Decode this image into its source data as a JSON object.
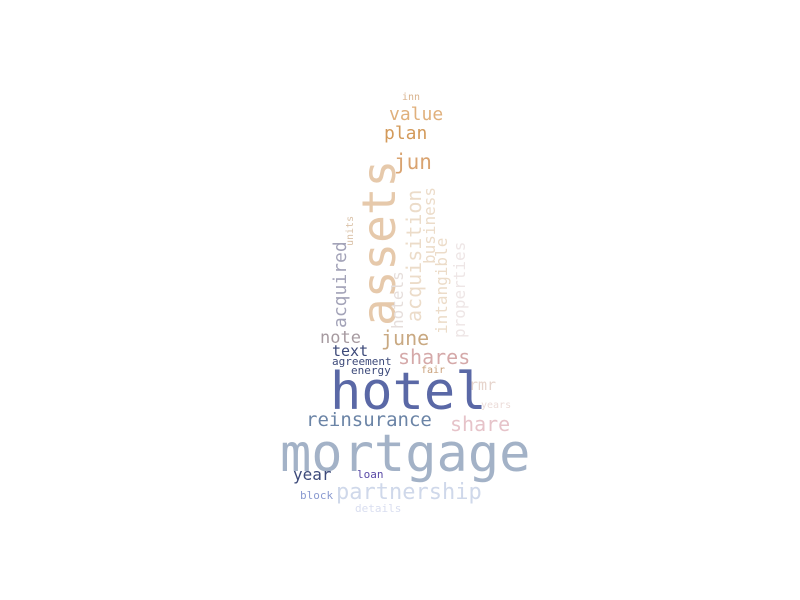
{
  "words": {
    "mortgage": {
      "text": "mortgage",
      "color": "#a3b2c7"
    },
    "hotel": {
      "text": "hotel",
      "color": "#5a68a6"
    },
    "assets": {
      "text": "assets",
      "color": "#e6c9ab"
    },
    "partnership": {
      "text": "partnership",
      "color": "#cfd8ea"
    },
    "reinsurance": {
      "text": "reinsurance",
      "color": "#6b84a6"
    },
    "share": {
      "text": "share",
      "color": "#e6c3c9"
    },
    "shares": {
      "text": "shares",
      "color": "#d5a9a9"
    },
    "june": {
      "text": "june",
      "color": "#c9a982"
    },
    "jun": {
      "text": "jun",
      "color": "#d9a370"
    },
    "plan": {
      "text": "plan",
      "color": "#d39a5a"
    },
    "value": {
      "text": "value",
      "color": "#e0b07c"
    },
    "inn": {
      "text": "inn",
      "color": "#d9b38e"
    },
    "acquisition": {
      "text": "acquisition",
      "color": "#ecdcc9"
    },
    "business": {
      "text": "business",
      "color": "#ecdcc9"
    },
    "intangible": {
      "text": "intangible",
      "color": "#ecdcc9"
    },
    "properties": {
      "text": "properties",
      "color": "#eee6e6"
    },
    "hotels": {
      "text": "hotels",
      "color": "#e6dedb"
    },
    "acquired": {
      "text": "acquired",
      "color": "#a3a3b8"
    },
    "units": {
      "text": "units",
      "color": "#d9c0a6"
    },
    "note": {
      "text": "note",
      "color": "#a69aa0"
    },
    "text": {
      "text": "text",
      "color": "#3d4a7a"
    },
    "agreement": {
      "text": "agreement",
      "color": "#3d4a7a"
    },
    "energy": {
      "text": "energy",
      "color": "#3d4a7a"
    },
    "fair": {
      "text": "fair",
      "color": "#c9a07a"
    },
    "rmr": {
      "text": "rmr",
      "color": "#e6d4cc"
    },
    "years": {
      "text": "years",
      "color": "#ecdcd9"
    },
    "year": {
      "text": "year",
      "color": "#3d4a7a"
    },
    "loan": {
      "text": "loan",
      "color": "#5a4aa6"
    },
    "block": {
      "text": "block",
      "color": "#8a9ad0"
    },
    "details": {
      "text": "details",
      "color": "#d9def0"
    }
  }
}
